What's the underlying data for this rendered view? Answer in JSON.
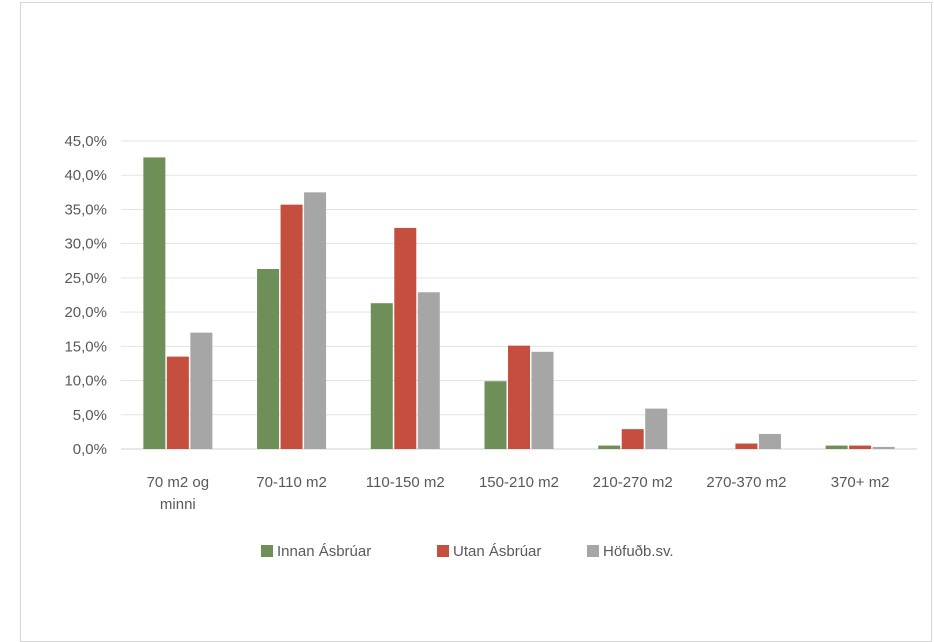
{
  "chart_data": {
    "type": "bar",
    "categories": [
      [
        "70 m2 og",
        "minni"
      ],
      [
        "70-110 m2"
      ],
      [
        "110-150 m2"
      ],
      [
        "150-210 m2"
      ],
      [
        "210-270 m2"
      ],
      [
        "270-370 m2"
      ],
      [
        "370+ m2"
      ]
    ],
    "series": [
      {
        "name": "Innan Ásbrúar",
        "color": "#6e8f58",
        "values": [
          42.6,
          26.3,
          21.3,
          9.9,
          0.5,
          0.0,
          0.5
        ]
      },
      {
        "name": "Utan Ásbrúar",
        "color": "#c44f3f",
        "values": [
          13.5,
          35.7,
          32.3,
          15.1,
          2.9,
          0.8,
          0.5
        ]
      },
      {
        "name": "Höfuðb.sv.",
        "color": "#a6a6a6",
        "values": [
          17.0,
          37.5,
          22.9,
          14.2,
          5.9,
          2.2,
          0.3
        ]
      }
    ],
    "ylim": [
      0,
      45
    ],
    "yticks": [
      0,
      5,
      10,
      15,
      20,
      25,
      30,
      35,
      40,
      45
    ],
    "ytick_labels": [
      "0,0%",
      "5,0%",
      "10,0%",
      "15,0%",
      "20,0%",
      "25,0%",
      "30,0%",
      "35,0%",
      "40,0%",
      "45,0%"
    ],
    "title": "",
    "xlabel": "",
    "ylabel": "",
    "grid": true,
    "legend_position": "bottom"
  }
}
